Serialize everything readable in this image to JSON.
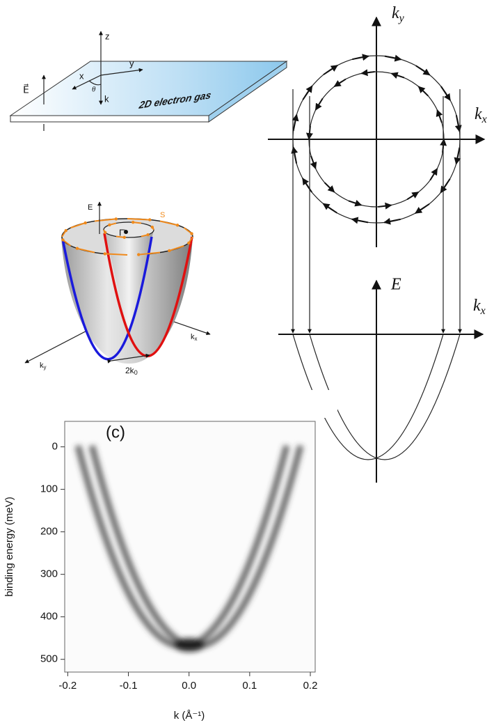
{
  "panel_a": {
    "z": "z",
    "y": "y",
    "x": "x",
    "theta": "θ",
    "k": "k",
    "field": "E⃗",
    "slab_label": "2D electron gas"
  },
  "panel_b": {
    "energy": "E",
    "spin": "S",
    "gamma": "Γ̄",
    "kx": {
      "text": "k",
      "sub": "x"
    },
    "ky": {
      "text": "k",
      "sub": "y"
    },
    "splitting": {
      "text": "2k",
      "sub": "0"
    }
  },
  "panel_right": {
    "ky": {
      "text": "k",
      "sub": "y"
    },
    "kx_top": {
      "text": "k",
      "sub": "x"
    },
    "energy": "E",
    "kx_bottom": {
      "text": "k",
      "sub": "x"
    }
  },
  "panel_c": {
    "label": "(c)",
    "x_label": "k (Å⁻¹)",
    "y_label": "binding energy (meV)",
    "xlim": [
      -0.205,
      0.208
    ],
    "ylim": [
      -60,
      530
    ],
    "xticks": [
      -0.2,
      -0.1,
      {
        "value": 0,
        "label": "0.0"
      },
      0.1,
      0.2
    ],
    "yticks": [
      0,
      100,
      200,
      300,
      400,
      500
    ]
  }
}
